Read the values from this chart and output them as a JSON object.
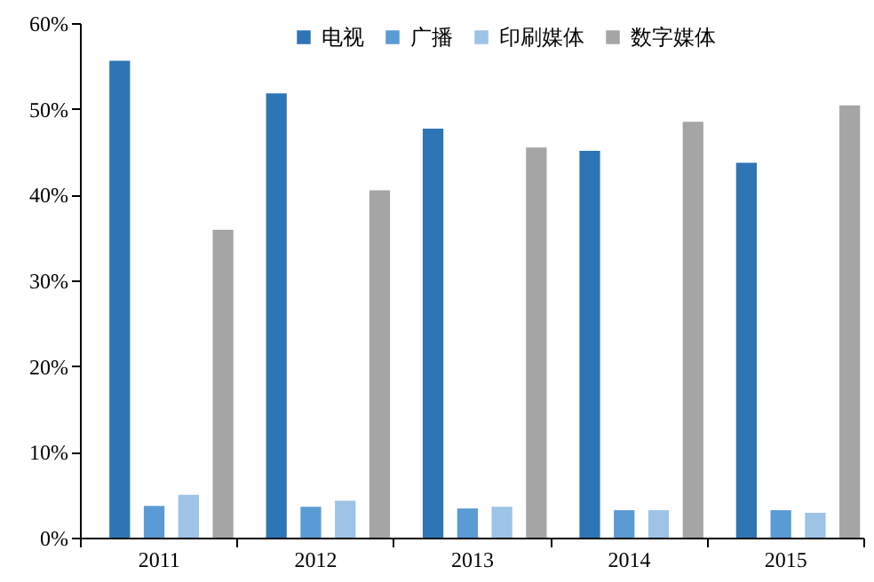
{
  "chart_data": {
    "type": "bar",
    "categories": [
      "2011",
      "2012",
      "2013",
      "2014",
      "2015"
    ],
    "series": [
      {
        "name": "电视",
        "color": "#2e75b6",
        "values": [
          55.6,
          51.8,
          47.7,
          45.1,
          43.7
        ]
      },
      {
        "name": "广播",
        "color": "#5b9bd5",
        "values": [
          3.7,
          3.6,
          3.4,
          3.2,
          3.2
        ]
      },
      {
        "name": "印刷媒体",
        "color": "#9dc3e6",
        "values": [
          5.0,
          4.3,
          3.6,
          3.2,
          2.9
        ]
      },
      {
        "name": "数字媒体",
        "color": "#a5a5a5",
        "values": [
          35.9,
          40.5,
          45.5,
          48.5,
          50.4
        ]
      }
    ],
    "ylim": [
      0,
      60
    ],
    "yticks": [
      {
        "value": 0,
        "label": "0%"
      },
      {
        "value": 10,
        "label": "10%"
      },
      {
        "value": 20,
        "label": "20%"
      },
      {
        "value": 30,
        "label": "30%"
      },
      {
        "value": 40,
        "label": "40%"
      },
      {
        "value": 50,
        "label": "50%"
      },
      {
        "value": 60,
        "label": "60%"
      }
    ],
    "grid": false,
    "legend": "top"
  }
}
